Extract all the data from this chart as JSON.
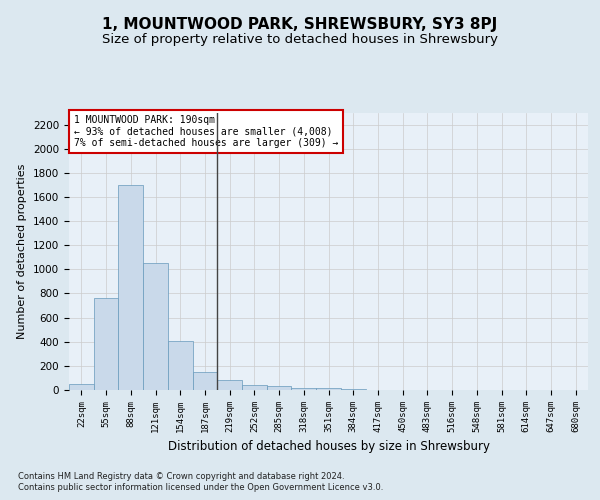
{
  "title": "1, MOUNTWOOD PARK, SHREWSBURY, SY3 8PJ",
  "subtitle": "Size of property relative to detached houses in Shrewsbury",
  "xlabel": "Distribution of detached houses by size in Shrewsbury",
  "ylabel": "Number of detached properties",
  "bin_labels": [
    "22sqm",
    "55sqm",
    "88sqm",
    "121sqm",
    "154sqm",
    "187sqm",
    "219sqm",
    "252sqm",
    "285sqm",
    "318sqm",
    "351sqm",
    "384sqm",
    "417sqm",
    "450sqm",
    "483sqm",
    "516sqm",
    "548sqm",
    "581sqm",
    "614sqm",
    "647sqm",
    "680sqm"
  ],
  "bar_values": [
    50,
    760,
    1700,
    1050,
    410,
    150,
    80,
    40,
    30,
    20,
    15,
    10,
    0,
    0,
    0,
    0,
    0,
    0,
    0,
    0,
    0
  ],
  "bar_color": "#c9d9ea",
  "bar_edge_color": "#6699bb",
  "property_line_x": 5.5,
  "annotation_text": "1 MOUNTWOOD PARK: 190sqm\n← 93% of detached houses are smaller (4,008)\n7% of semi-detached houses are larger (309) →",
  "annotation_box_color": "white",
  "annotation_box_edge_color": "#cc0000",
  "ylim": [
    0,
    2300
  ],
  "yticks": [
    0,
    200,
    400,
    600,
    800,
    1000,
    1200,
    1400,
    1600,
    1800,
    2000,
    2200
  ],
  "grid_color": "#cccccc",
  "bg_color": "#dce8f0",
  "plot_bg_color": "#e8f0f8",
  "footer_line1": "Contains HM Land Registry data © Crown copyright and database right 2024.",
  "footer_line2": "Contains public sector information licensed under the Open Government Licence v3.0.",
  "title_fontsize": 11,
  "subtitle_fontsize": 9.5,
  "xlabel_fontsize": 8.5,
  "ylabel_fontsize": 8
}
